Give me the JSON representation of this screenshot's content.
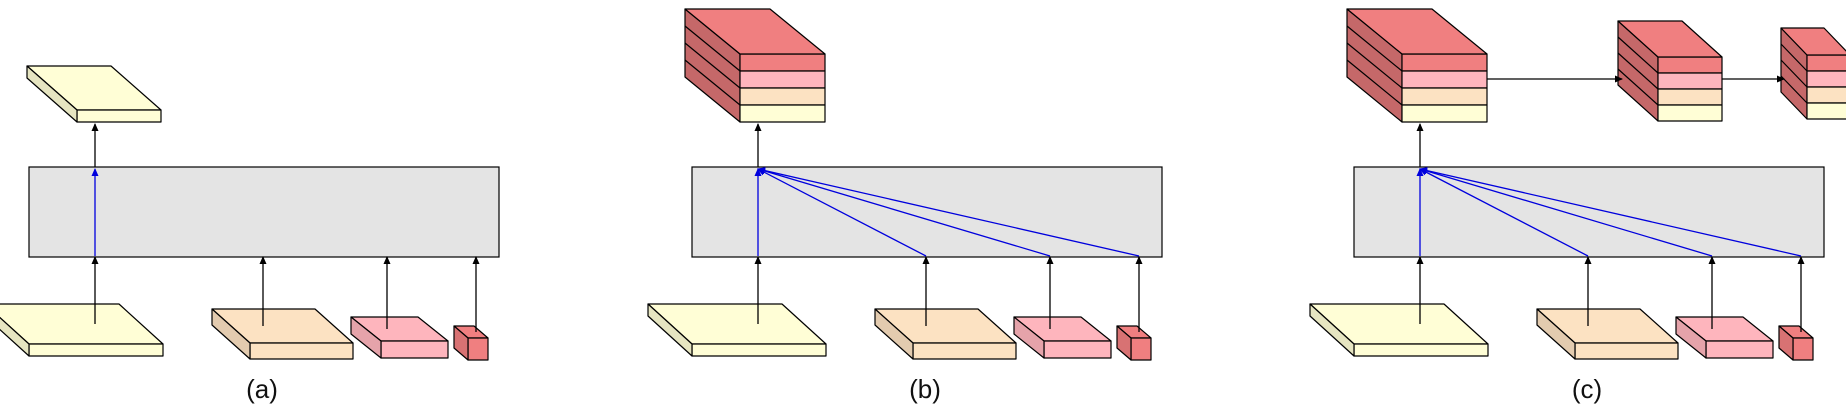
{
  "panels": [
    {
      "label": "(a)",
      "variant": "single"
    },
    {
      "label": "(b)",
      "variant": "stacked"
    },
    {
      "label": "(c)",
      "variant": "pyramid"
    }
  ],
  "colors": {
    "level_1": "#fffed6",
    "level_2": "#fce2c2",
    "level_3": "#feb5bd",
    "level_4": "#f07f80",
    "module_fill": "#e4e4e4",
    "plain_arrow": "#000000",
    "fusion_arrow": "#0000dd",
    "edge": "#000000"
  },
  "input_levels": 4,
  "output_stack_layers": 4
}
